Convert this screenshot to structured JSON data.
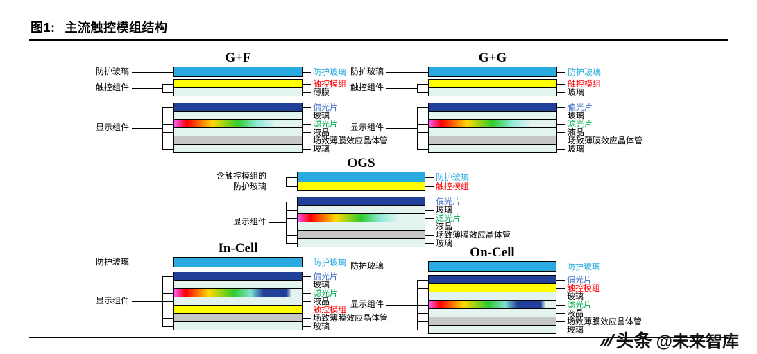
{
  "figure": {
    "label": "图1:",
    "title": "主流触控模组结构"
  },
  "watermark": {
    "brand": "头条",
    "handle": "@未来智库"
  },
  "palette": {
    "protective": "#29ABE2",
    "touch": "#FFFF00",
    "light": "#E2F3F0",
    "polarizer": "#20409A",
    "tft": "#C6C6C6",
    "filter_a": "linear-gradient(90deg,#ff5aff 0%,#ff0000 10%,#ffd800 30%,#2ecc2e 50%,#8fe8d8 65%,#e2f3f0 80%,#e2f3f0 100%)",
    "filter_b": "linear-gradient(90deg,#ff5aff 0%,#ff0000 9%,#ffd800 27%,#2ecc2e 47%,#7fe0d0 60%,#20409a 70%,#20409a 88%,#e2f3f0 92%,#e2f3f0 100%)",
    "label_blue": "#29ABE2",
    "label_polarizer_blue": "#4472C4",
    "label_red": "#FF0000",
    "label_green": "#00B050",
    "label_black": "#000000"
  },
  "diagrams": [
    {
      "id": "gf",
      "title": "G+F",
      "groups": [
        {
          "label_lines": [
            "防护玻璃"
          ],
          "layers": [
            {
              "name": "防护玻璃",
              "fill": "protective",
              "tc": "blue"
            }
          ]
        },
        {
          "label_lines": [
            "触控组件"
          ],
          "layers": [
            {
              "name": "触控模组",
              "fill": "touch",
              "tc": "red"
            },
            {
              "name": "薄膜",
              "fill": "light",
              "tc": "black"
            }
          ]
        },
        {
          "label_lines": [
            "显示组件"
          ],
          "layers": [
            {
              "name": "偏光片",
              "fill": "polarizer",
              "tc": "blue2"
            },
            {
              "name": "玻璃",
              "fill": "light",
              "tc": "black"
            },
            {
              "name": "滤光片",
              "fill": "filter_a",
              "tc": "green"
            },
            {
              "name": "液晶",
              "fill": "light",
              "tc": "black"
            },
            {
              "name": "场致薄膜效应晶体管",
              "fill": "tft",
              "tc": "black"
            },
            {
              "name": "玻璃",
              "fill": "light",
              "tc": "black"
            }
          ]
        }
      ]
    },
    {
      "id": "gg",
      "title": "G+G",
      "groups": [
        {
          "label_lines": [
            "防护玻璃"
          ],
          "layers": [
            {
              "name": "防护玻璃",
              "fill": "protective",
              "tc": "blue"
            }
          ]
        },
        {
          "label_lines": [
            "触控组件"
          ],
          "layers": [
            {
              "name": "触控模组",
              "fill": "touch",
              "tc": "red"
            },
            {
              "name": "玻璃",
              "fill": "light",
              "tc": "black"
            }
          ]
        },
        {
          "label_lines": [
            "显示组件"
          ],
          "layers": [
            {
              "name": "偏光片",
              "fill": "polarizer",
              "tc": "blue2"
            },
            {
              "name": "玻璃",
              "fill": "light",
              "tc": "black"
            },
            {
              "name": "滤光片",
              "fill": "filter_a",
              "tc": "green"
            },
            {
              "name": "液晶",
              "fill": "light",
              "tc": "black"
            },
            {
              "name": "场致薄膜效应晶体管",
              "fill": "tft",
              "tc": "black"
            },
            {
              "name": "玻璃",
              "fill": "light",
              "tc": "black"
            }
          ]
        }
      ]
    },
    {
      "id": "ogs",
      "title": "OGS",
      "groups": [
        {
          "label_lines": [
            "含触控模组的",
            "防护玻璃"
          ],
          "layers": [
            {
              "name": "防护玻璃",
              "fill": "protective",
              "tc": "blue"
            },
            {
              "name": "触控模组",
              "fill": "touch",
              "tc": "red"
            }
          ]
        },
        {
          "label_lines": [
            "显示组件"
          ],
          "layers": [
            {
              "name": "偏光片",
              "fill": "polarizer",
              "tc": "blue2"
            },
            {
              "name": "玻璃",
              "fill": "light",
              "tc": "black"
            },
            {
              "name": "滤光片",
              "fill": "filter_a",
              "tc": "green"
            },
            {
              "name": "液晶",
              "fill": "light",
              "tc": "black"
            },
            {
              "name": "场致薄膜效应晶体管",
              "fill": "tft",
              "tc": "black"
            },
            {
              "name": "玻璃",
              "fill": "light",
              "tc": "black"
            }
          ]
        }
      ]
    },
    {
      "id": "incell",
      "title": "In-Cell",
      "groups": [
        {
          "label_lines": [
            "防护玻璃"
          ],
          "layers": [
            {
              "name": "防护玻璃",
              "fill": "protective",
              "tc": "blue"
            }
          ]
        },
        {
          "label_lines": [
            "显示组件"
          ],
          "layers": [
            {
              "name": "偏光片",
              "fill": "polarizer",
              "tc": "blue2"
            },
            {
              "name": "玻璃",
              "fill": "light",
              "tc": "black"
            },
            {
              "name": "滤光片",
              "fill": "filter_b",
              "tc": "green"
            },
            {
              "name": "液晶",
              "fill": "light",
              "tc": "black"
            },
            {
              "name": "触控模组",
              "fill": "touch",
              "tc": "red"
            },
            {
              "name": "场致薄膜效应晶体管",
              "fill": "tft",
              "tc": "black"
            },
            {
              "name": "玻璃",
              "fill": "light",
              "tc": "black"
            }
          ]
        }
      ]
    },
    {
      "id": "oncell",
      "title": "On-Cell",
      "groups": [
        {
          "label_lines": [
            "防护玻璃"
          ],
          "layers": [
            {
              "name": "防护玻璃",
              "fill": "protective",
              "tc": "blue"
            }
          ]
        },
        {
          "label_lines": [
            "显示组件"
          ],
          "layers": [
            {
              "name": "偏光片",
              "fill": "polarizer",
              "tc": "blue2"
            },
            {
              "name": "触控模组",
              "fill": "touch",
              "tc": "red"
            },
            {
              "name": "玻璃",
              "fill": "light",
              "tc": "black"
            },
            {
              "name": "滤光片",
              "fill": "filter_b",
              "tc": "green"
            },
            {
              "name": "液晶",
              "fill": "light",
              "tc": "black"
            },
            {
              "name": "场致薄膜效应晶体管",
              "fill": "tft",
              "tc": "black"
            },
            {
              "name": "玻璃",
              "fill": "light",
              "tc": "black"
            }
          ]
        }
      ]
    }
  ]
}
